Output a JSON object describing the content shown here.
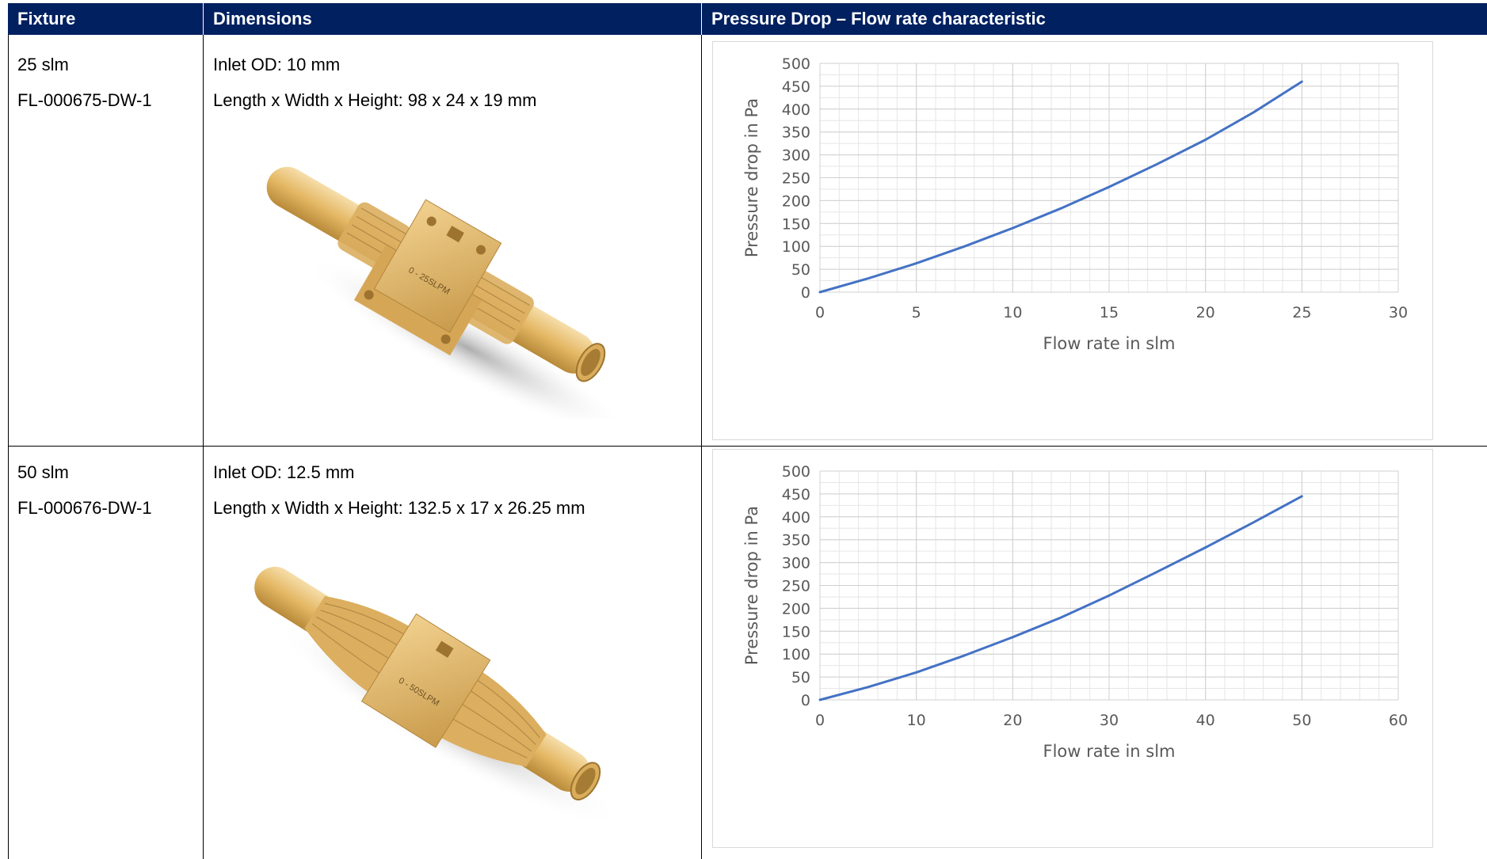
{
  "table": {
    "headers": [
      "Fixture",
      "Dimensions",
      "Pressure Drop – Flow rate characteristic"
    ],
    "rows": [
      {
        "fixture_rate": "25 slm",
        "fixture_part": "FL-000675-DW-1",
        "inlet": "Inlet OD: 10 mm",
        "size": "Length x Width x Height: 98 x 24 x 19 mm",
        "render_label": "0 - 25SLPM"
      },
      {
        "fixture_rate": "50 slm",
        "fixture_part": "FL-000676-DW-1",
        "inlet": "Inlet OD: 12.5 mm",
        "size": "Length x Width x Height: 132.5 x 17 x 26.25 mm",
        "render_label": "0 - 50SLPM"
      }
    ]
  },
  "colors": {
    "header_bg": "#002060",
    "line": "#4472C4",
    "render_body": "#e8c27a"
  },
  "chart_data": [
    {
      "type": "line",
      "xlabel": "Flow rate in slm",
      "ylabel": "Pressure drop in Pa",
      "xlim": [
        0,
        30
      ],
      "ylim": [
        0,
        500
      ],
      "xticks": [
        0,
        5,
        10,
        15,
        20,
        25,
        30
      ],
      "yticks": [
        0,
        50,
        100,
        150,
        200,
        250,
        300,
        350,
        400,
        450,
        500
      ],
      "grid": true,
      "series": [
        {
          "x": [
            0,
            2.5,
            5,
            7.5,
            10,
            12.5,
            15,
            17.5,
            20,
            22.5,
            25
          ],
          "y": [
            0,
            30,
            63,
            100,
            140,
            183,
            230,
            280,
            333,
            393,
            460
          ]
        }
      ]
    },
    {
      "type": "line",
      "xlabel": "Flow rate in slm",
      "ylabel": "Pressure drop in Pa",
      "xlim": [
        0,
        60
      ],
      "ylim": [
        0,
        500
      ],
      "xticks": [
        0,
        10,
        20,
        30,
        40,
        50,
        60
      ],
      "yticks": [
        0,
        50,
        100,
        150,
        200,
        250,
        300,
        350,
        400,
        450,
        500
      ],
      "grid": true,
      "series": [
        {
          "x": [
            0,
            5,
            10,
            15,
            20,
            25,
            30,
            35,
            40,
            45,
            50
          ],
          "y": [
            0,
            28,
            60,
            97,
            137,
            180,
            228,
            280,
            333,
            388,
            445
          ]
        }
      ]
    }
  ]
}
